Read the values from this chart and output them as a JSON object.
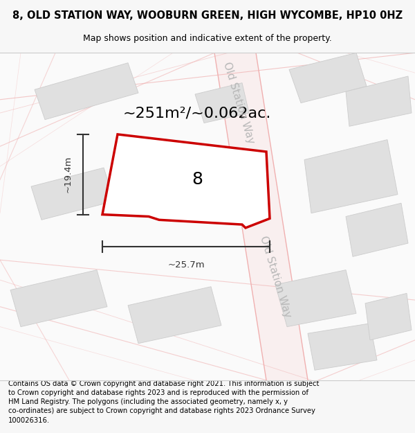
{
  "title": "8, OLD STATION WAY, WOOBURN GREEN, HIGH WYCOMBE, HP10 0HZ",
  "subtitle": "Map shows position and indicative extent of the property.",
  "area_label": "~251m²/~0.062ac.",
  "number_label": "8",
  "width_label": "~25.7m",
  "height_label": "~19.4m",
  "street_label": "Old Station Way",
  "footer_line1": "Contains OS data © Crown copyright and database right 2021. This information is subject",
  "footer_line2": "to Crown copyright and database rights 2023 and is reproduced with the permission of",
  "footer_line3": "HM Land Registry. The polygons (including the associated geometry, namely x, y",
  "footer_line4": "co-ordinates) are subject to Crown copyright and database rights 2023 Ordnance Survey",
  "footer_line5": "100026316.",
  "bg_color": "#f7f7f7",
  "map_bg": "#f5f5f5",
  "road_fill": "#f9efef",
  "road_edge": "#f0b0b0",
  "road_center": "#f5d5d5",
  "building_fill": "#e0e0e0",
  "building_edge": "#cccccc",
  "property_fill": "#ffffff",
  "property_edge": "#cc0000",
  "dim_color": "#333333",
  "street_color": "#b8b8b8",
  "title_fontsize": 10.5,
  "subtitle_fontsize": 9.0,
  "area_fontsize": 16,
  "number_fontsize": 18,
  "dim_fontsize": 9.5,
  "street_fontsize": 11,
  "footer_fontsize": 7.2
}
